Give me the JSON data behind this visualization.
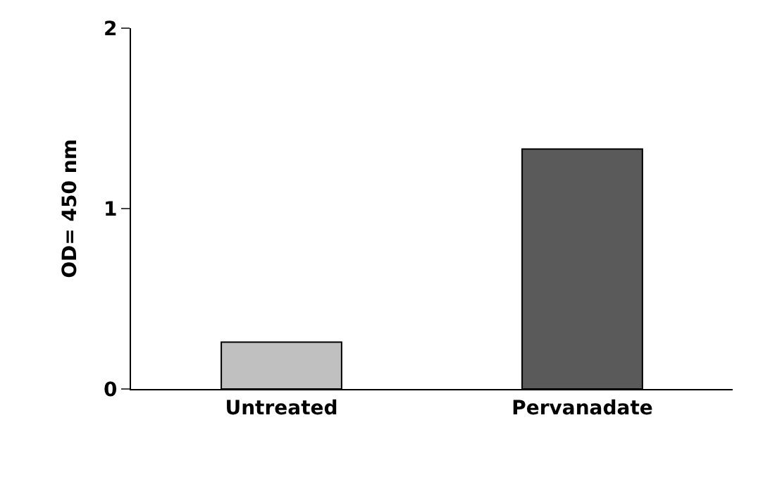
{
  "chart_data": {
    "type": "bar",
    "ylabel": "OD= 450 nm",
    "categories": [
      "Untreated",
      "Pervanadate"
    ],
    "values": [
      0.26,
      1.33
    ],
    "colors": [
      "#c0c0c0",
      "#5a5a5a"
    ],
    "ylim": [
      0,
      2
    ],
    "yticks": [
      0,
      1,
      2
    ],
    "legend": false
  }
}
